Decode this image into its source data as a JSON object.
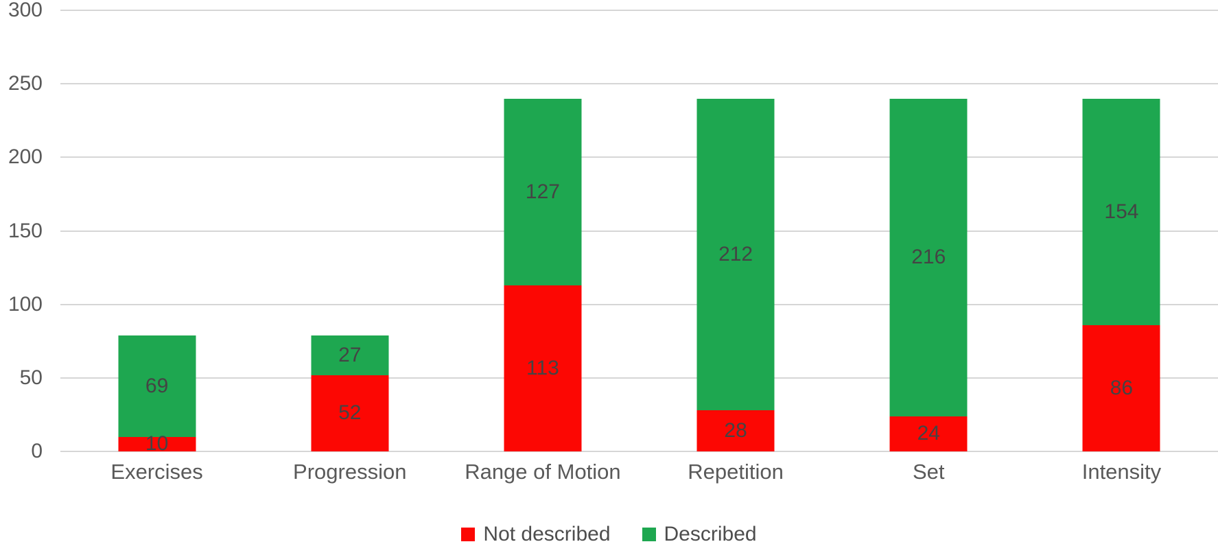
{
  "chart_data": {
    "type": "bar",
    "stacked": true,
    "title": "",
    "xlabel": "",
    "ylabel": "",
    "categories": [
      "Exercises",
      "Progression",
      "Range of Motion",
      "Repetition",
      "Set",
      "Intensity"
    ],
    "series": [
      {
        "name": "Not described",
        "color": "#fc0703",
        "values": [
          10,
          52,
          113,
          28,
          24,
          86
        ]
      },
      {
        "name": "Described",
        "color": "#1ea750",
        "values": [
          69,
          27,
          127,
          212,
          216,
          154
        ]
      }
    ],
    "totals": [
      79,
      79,
      240,
      240,
      240,
      240
    ],
    "ylim": [
      0,
      300
    ],
    "y_ticks": [
      0,
      50,
      100,
      150,
      200,
      250,
      300
    ],
    "grid": true,
    "legend_position": "bottom",
    "colors": {
      "axis_text": "#595959",
      "gridline": "#d6d6d6",
      "data_label": "#444444",
      "background": "#ffffff"
    }
  }
}
